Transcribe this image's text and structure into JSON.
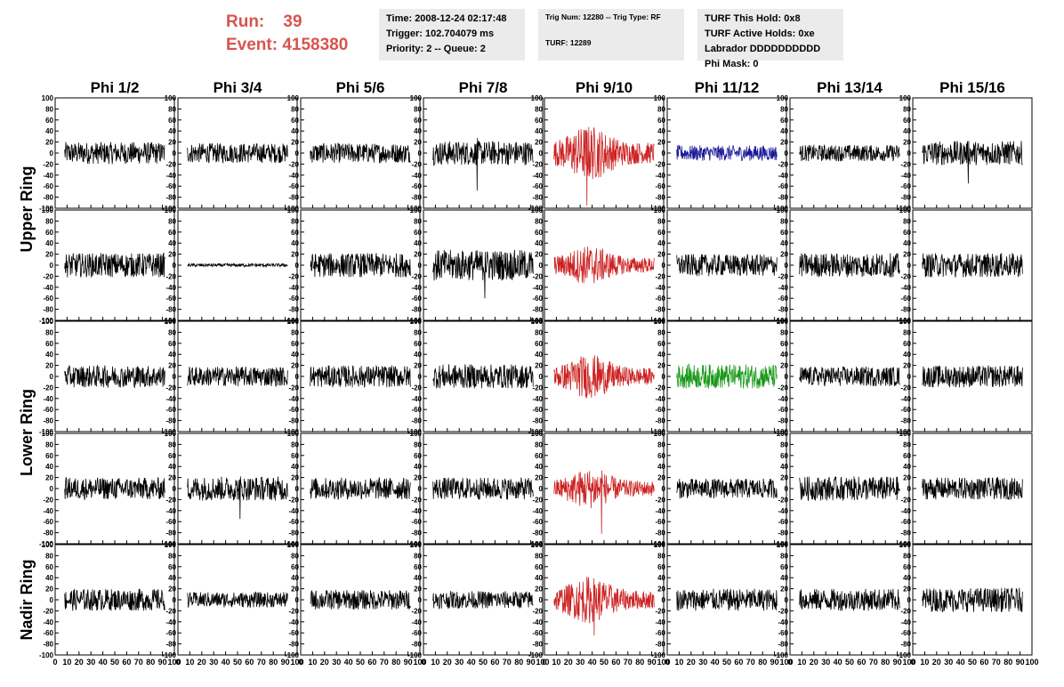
{
  "header": {
    "run_label": "Run:",
    "run_value": "39",
    "event_label": "Event:",
    "event_value": "4158380"
  },
  "info_time": {
    "time": "Time: 2008-12-24 02:17:48",
    "trigger": "Trigger: 102.704079 ms",
    "priority": "Priority: 2 -- Queue: 2"
  },
  "info_trig": {
    "trig": "Trig Num: 12280 -- Trig Type: RF",
    "turf": "TURF: 12289"
  },
  "info_turf": {
    "hold": "TURF This Hold: 0x8",
    "active": "TURF Active Holds: 0xe",
    "labrador": "Labrador DDDDDDDDDD",
    "phimask": "Phi Mask: 0"
  },
  "chart_data": {
    "type": "line",
    "columns": [
      "Phi 1/2",
      "Phi 3/4",
      "Phi 5/6",
      "Phi 7/8",
      "Phi 9/10",
      "Phi 11/12",
      "Phi 13/14",
      "Phi 15/16"
    ],
    "ring_labels": [
      {
        "text": "Upper Ring",
        "rows": [
          0,
          1
        ]
      },
      {
        "text": "Lower Ring",
        "rows": [
          2,
          3
        ]
      },
      {
        "text": "Nadir Ring",
        "rows": [
          4
        ]
      }
    ],
    "ylim": [
      -100,
      100
    ],
    "xlim": [
      0,
      100
    ],
    "yticks": [
      -100,
      -80,
      -60,
      -40,
      -20,
      0,
      20,
      40,
      60,
      80,
      100
    ],
    "xticks": [
      0,
      10,
      20,
      30,
      40,
      50,
      60,
      70,
      80,
      90,
      100
    ],
    "ytick_labels": [
      "-100",
      "-80",
      "-60",
      "-40",
      "-20",
      "0",
      "20",
      "40",
      "60",
      "80",
      "100"
    ],
    "xtick_labels": [
      "0",
      "10",
      "20",
      "30",
      "40",
      "50",
      "60",
      "70",
      "80",
      "90",
      "100"
    ],
    "colors": {
      "default": "#000000",
      "red": "#cc2222",
      "blue": "#1a1a99",
      "green": "#189818"
    },
    "panels": [
      [
        {
          "color": "default",
          "amplitude": 20
        },
        {
          "color": "default",
          "amplitude": 18
        },
        {
          "color": "default",
          "amplitude": 18
        },
        {
          "color": "default",
          "amplitude": 22,
          "spike": -68
        },
        {
          "color": "red",
          "amplitude": 35,
          "spike": -95
        },
        {
          "color": "blue",
          "amplitude": 14
        },
        {
          "color": "default",
          "amplitude": 15
        },
        {
          "color": "default",
          "amplitude": 22,
          "spike": -55
        }
      ],
      [
        {
          "color": "default",
          "amplitude": 22
        },
        {
          "color": "default",
          "amplitude": 3
        },
        {
          "color": "default",
          "amplitude": 22
        },
        {
          "color": "default",
          "amplitude": 28,
          "spike": -60
        },
        {
          "color": "red",
          "amplitude": 25
        },
        {
          "color": "default",
          "amplitude": 20
        },
        {
          "color": "default",
          "amplitude": 22
        },
        {
          "color": "default",
          "amplitude": 22
        }
      ],
      [
        {
          "color": "default",
          "amplitude": 20
        },
        {
          "color": "default",
          "amplitude": 18
        },
        {
          "color": "default",
          "amplitude": 20
        },
        {
          "color": "default",
          "amplitude": 22
        },
        {
          "color": "red",
          "amplitude": 28
        },
        {
          "color": "green",
          "amplitude": 22
        },
        {
          "color": "default",
          "amplitude": 18
        },
        {
          "color": "default",
          "amplitude": 20
        }
      ],
      [
        {
          "color": "default",
          "amplitude": 20
        },
        {
          "color": "default",
          "amplitude": 22,
          "spike": -55
        },
        {
          "color": "default",
          "amplitude": 20
        },
        {
          "color": "default",
          "amplitude": 20
        },
        {
          "color": "red",
          "amplitude": 25,
          "spike": -82
        },
        {
          "color": "default",
          "amplitude": 18
        },
        {
          "color": "default",
          "amplitude": 22
        },
        {
          "color": "default",
          "amplitude": 20
        }
      ],
      [
        {
          "color": "default",
          "amplitude": 20
        },
        {
          "color": "default",
          "amplitude": 14
        },
        {
          "color": "default",
          "amplitude": 18
        },
        {
          "color": "default",
          "amplitude": 16
        },
        {
          "color": "red",
          "amplitude": 30,
          "spike": -65
        },
        {
          "color": "default",
          "amplitude": 20
        },
        {
          "color": "default",
          "amplitude": 20
        },
        {
          "color": "default",
          "amplitude": 22
        }
      ]
    ]
  }
}
